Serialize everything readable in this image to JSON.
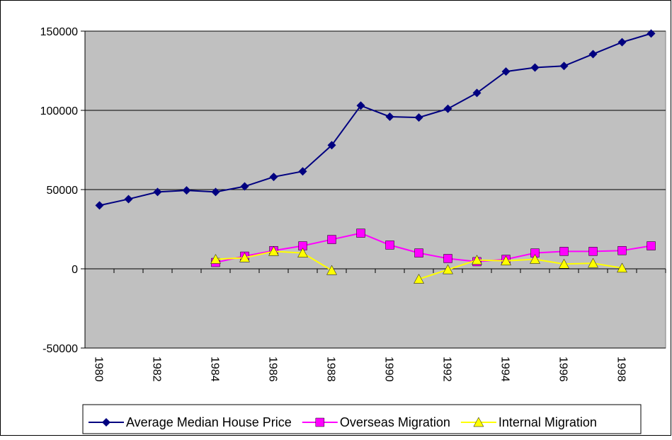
{
  "chart_data": {
    "type": "line",
    "categories": [
      "1980",
      null,
      "1982",
      null,
      "1984",
      null,
      "1986",
      null,
      "1988",
      null,
      "1990",
      null,
      "1992",
      null,
      "1994",
      null,
      "1996",
      null,
      "1998",
      null
    ],
    "series": [
      {
        "name": "Average Median House Price",
        "color": "#000080",
        "marker": "diamond",
        "values": [
          40000,
          44000,
          48500,
          49500,
          48500,
          52000,
          58000,
          61500,
          78000,
          103000,
          96000,
          95500,
          101000,
          111000,
          124500,
          127000,
          128000,
          135500,
          143000,
          148500
        ]
      },
      {
        "name": "Overseas Migration",
        "color": "#ff00ff",
        "marker": "square",
        "values": [
          null,
          null,
          null,
          null,
          4000,
          8000,
          11500,
          14500,
          18500,
          22500,
          15000,
          10000,
          6500,
          4500,
          6000,
          10000,
          11000,
          11000,
          11500,
          14500
        ]
      },
      {
        "name": "Internal Migration",
        "color": "#ffff00",
        "marker": "triangle",
        "values": [
          null,
          null,
          null,
          null,
          6000,
          7000,
          11000,
          10000,
          -1000,
          null,
          null,
          -6500,
          -500,
          5500,
          5000,
          6000,
          3000,
          3500,
          500,
          null
        ]
      }
    ],
    "ylim": [
      -50000,
      150000
    ],
    "yticks": [
      -50000,
      0,
      50000,
      100000,
      150000
    ],
    "grid": true,
    "legend": "bottom",
    "plot_background": "#c0c0c0"
  }
}
